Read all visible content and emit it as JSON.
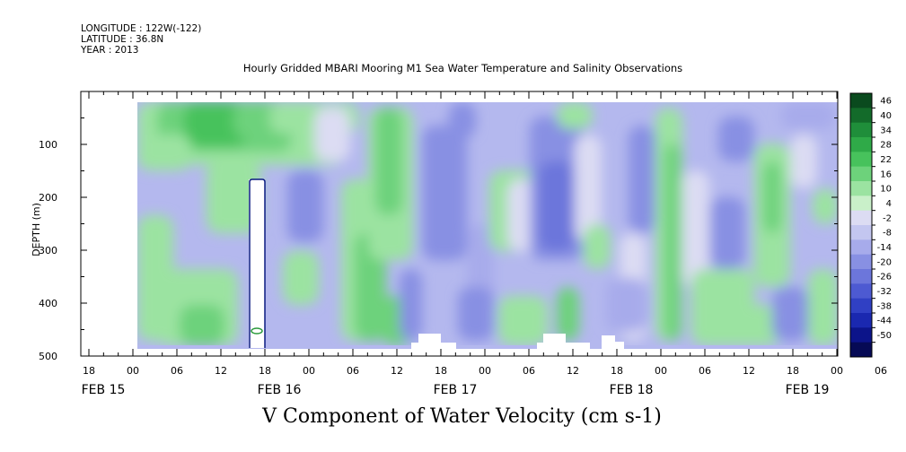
{
  "header": {
    "longitude": "LONGITUDE : 122W(-122)",
    "latitude": "LATITUDE : 36.8N",
    "year": "YEAR : 2013"
  },
  "title": "Hourly Gridded MBARI Mooring M1 Sea Water Temperature and Salinity Observations",
  "variable_label": "V Component of Water Velocity (cm s-1)",
  "chart_data": {
    "type": "heatmap",
    "title": "Hourly Gridded MBARI Mooring M1 Sea Water Temperature and Salinity Observations",
    "variable": "V Component of Water Velocity (cm s-1)",
    "ylabel": "DEPTH (m)",
    "ylim": [
      500,
      0
    ],
    "y_ticks": [
      100,
      200,
      300,
      400,
      500
    ],
    "x_hour_ticks": [
      "18",
      "00",
      "06",
      "12",
      "18",
      "00",
      "06",
      "12",
      "18",
      "00",
      "06",
      "12",
      "18",
      "00",
      "06",
      "12",
      "18",
      "00",
      "06",
      "12",
      "18",
      "00"
    ],
    "x_day_labels": [
      "FEB 15",
      "FEB 16",
      "FEB 17",
      "FEB 18",
      "FEB 19"
    ],
    "data_depth_range_m": [
      20,
      490
    ],
    "colorbar": {
      "ticks": [
        46,
        40,
        34,
        28,
        22,
        16,
        10,
        4,
        -2,
        -8,
        -14,
        -20,
        -26,
        -32,
        -38,
        -44,
        -50
      ],
      "colors": [
        "#0a4a1e",
        "#136b2a",
        "#1f8e3a",
        "#2faa48",
        "#47c25c",
        "#6dd27b",
        "#9be3a1",
        "#c9f0c9",
        "#dcdcf3",
        "#c3c6f0",
        "#a7abeb",
        "#8890e3",
        "#6c76db",
        "#4d5ad2",
        "#3040c4",
        "#1a28b0",
        "#0c148a",
        "#060a55"
      ]
    },
    "regions": [
      {
        "label": "positive northward flow (green)",
        "where": "20-150 m near FEB 16 06-12; 30-280 m FEB 17 06-12; near-bottom patches throughout"
      },
      {
        "label": "negative southward flow (blue)",
        "where": "widespread, strongest 150-450 m on FEB 18"
      },
      {
        "label": "missing data",
        "where": "170-480 m at FEB 16 17-18 and bottom gaps FEB 17-18"
      }
    ]
  }
}
